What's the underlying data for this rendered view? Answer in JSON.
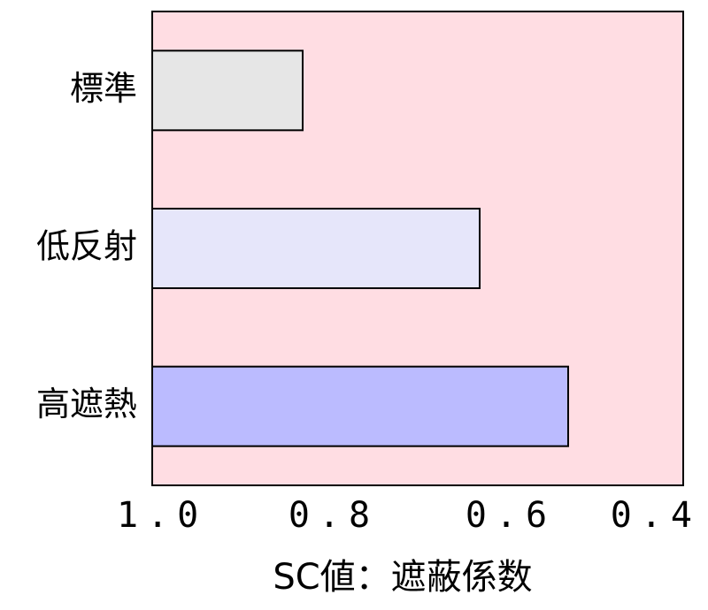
{
  "chart_data": {
    "type": "barh",
    "categories": [
      "標準",
      "低反射",
      "高遮熱"
    ],
    "values": [
      0.83,
      0.63,
      0.53
    ],
    "colors": [
      "#e6e6e6",
      "#e6e6fa",
      "#bbbbff"
    ],
    "background": "#ffdde3",
    "xlim": [
      1.0,
      0.4
    ],
    "xticks": [
      {
        "value": 1.0,
        "label": "1.0"
      },
      0.8,
      0.6,
      0.4
    ],
    "xlabel": "SC値：遮蔽係数"
  }
}
